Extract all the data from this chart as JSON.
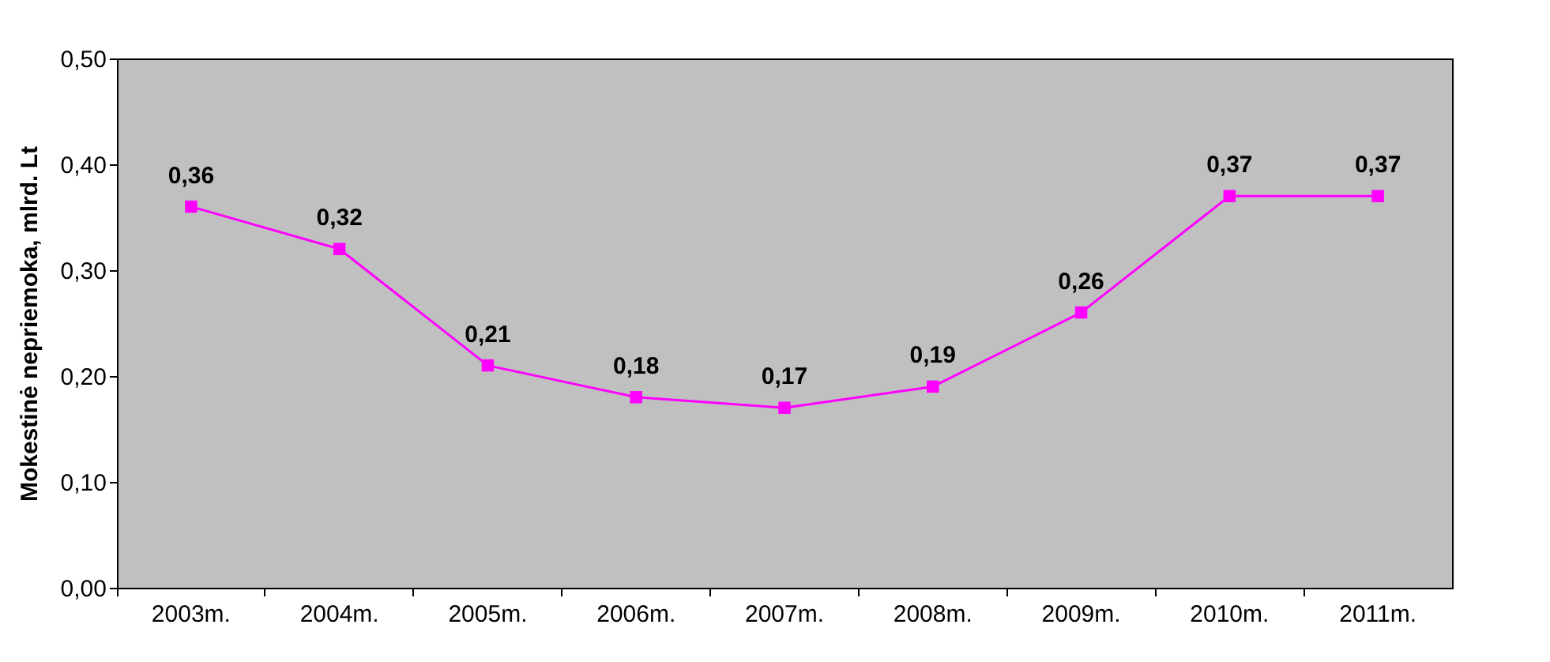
{
  "chart_data": {
    "type": "line",
    "ylabel": "Mokestinė nepriemoka, mlrd. Lt",
    "categories": [
      "2003m.",
      "2004m.",
      "2005m.",
      "2006m.",
      "2007m.",
      "2008m.",
      "2009m.",
      "2010m.",
      "2011m."
    ],
    "series": [
      {
        "color": "#ff00ff",
        "values": [
          0.36,
          0.32,
          0.21,
          0.18,
          0.17,
          0.19,
          0.26,
          0.37,
          0.37
        ],
        "value_labels": [
          "0,36",
          "0,32",
          "0,21",
          "0,18",
          "0,17",
          "0,19",
          "0,26",
          "0,37",
          "0,37"
        ]
      }
    ],
    "ylim": [
      0,
      0.5
    ],
    "yticks": [
      {
        "value": 0,
        "label": "0,00"
      },
      {
        "value": 0.1,
        "label": "0,10"
      },
      {
        "value": 0.2,
        "label": "0,20"
      },
      {
        "value": 0.3,
        "label": "0,30"
      },
      {
        "value": 0.4,
        "label": "0,40"
      },
      {
        "value": 0.5,
        "label": "0,50"
      }
    ],
    "marker": "square",
    "line_style": "solid",
    "grid": false
  }
}
